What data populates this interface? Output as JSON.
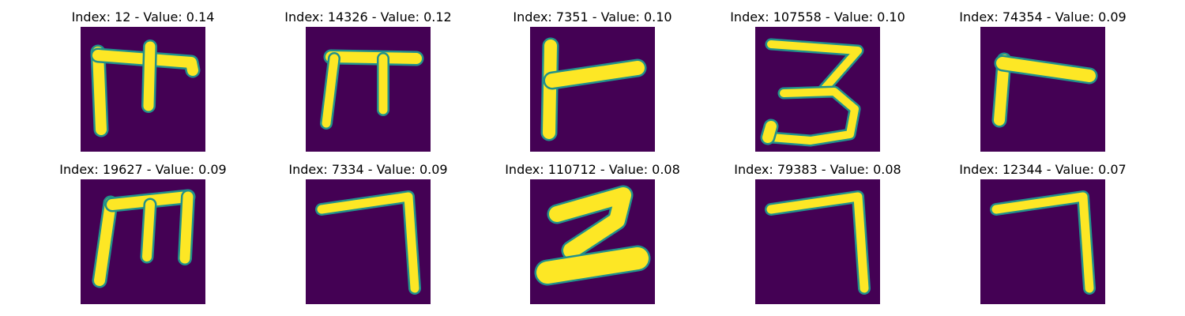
{
  "colors": {
    "background": "#440154",
    "stroke": "#fde725",
    "edge": "#21918c"
  },
  "panels": [
    {
      "title": "Index: 12 - Value: 0.14",
      "glyph": "glyph-m-short"
    },
    {
      "title": "Index: 14326 - Value: 0.12",
      "glyph": "glyph-pi"
    },
    {
      "title": "Index: 7351 - Value: 0.10",
      "glyph": "glyph-r"
    },
    {
      "title": "Index: 107558 - Value: 0.10",
      "glyph": "glyph-three"
    },
    {
      "title": "Index: 74354 - Value: 0.09",
      "glyph": "glyph-r-short"
    },
    {
      "title": "Index: 19627 - Value: 0.09",
      "glyph": "glyph-m"
    },
    {
      "title": "Index: 7334 - Value: 0.09",
      "glyph": "glyph-seven"
    },
    {
      "title": "Index: 110712 - Value: 0.08",
      "glyph": "glyph-two"
    },
    {
      "title": "Index: 79383 - Value: 0.08",
      "glyph": "glyph-seven"
    },
    {
      "title": "Index: 12344 - Value: 0.07",
      "glyph": "glyph-seven"
    }
  ]
}
